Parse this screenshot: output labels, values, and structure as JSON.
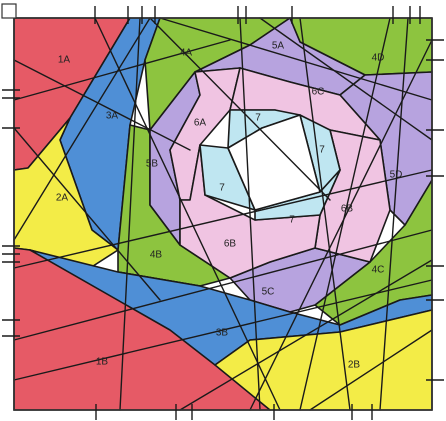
{
  "colors": {
    "red": "#e65a66",
    "blue": "#4f8fd6",
    "green": "#8dc43f",
    "yellow": "#f3ec47",
    "lavender": "#b7a3df",
    "pink": "#f0c4e2",
    "lightblue": "#bfe6f1",
    "white": "#ffffff"
  },
  "regions": [
    {
      "id": "1A",
      "label": "1A",
      "color": "red"
    },
    {
      "id": "2A",
      "label": "2A",
      "color": "yellow"
    },
    {
      "id": "3A",
      "label": "3A",
      "color": "blue"
    },
    {
      "id": "4A",
      "label": "4A",
      "color": "green"
    },
    {
      "id": "4B",
      "label": "4B",
      "color": "green"
    },
    {
      "id": "4C",
      "label": "4C",
      "color": "green"
    },
    {
      "id": "4D",
      "label": "4D",
      "color": "green"
    },
    {
      "id": "5A",
      "label": "5A",
      "color": "lavender"
    },
    {
      "id": "5B",
      "label": "5B",
      "color": "lavender"
    },
    {
      "id": "5C",
      "label": "5C",
      "color": "lavender"
    },
    {
      "id": "5D",
      "label": "5D",
      "color": "lavender"
    },
    {
      "id": "6A",
      "label": "6A",
      "color": "pink"
    },
    {
      "id": "6B",
      "label": "6B",
      "color": "pink"
    },
    {
      "id": "6B-2",
      "label": "6B",
      "color": "pink"
    },
    {
      "id": "6C",
      "label": "6C",
      "color": "pink"
    },
    {
      "id": "7-1",
      "label": "7",
      "color": "lightblue"
    },
    {
      "id": "7-2",
      "label": "7",
      "color": "lightblue"
    },
    {
      "id": "7-3",
      "label": "7",
      "color": "lightblue"
    },
    {
      "id": "7-4",
      "label": "7",
      "color": "lightblue"
    },
    {
      "id": "1B",
      "label": "1B",
      "color": "red"
    },
    {
      "id": "2B",
      "label": "2B",
      "color": "yellow"
    },
    {
      "id": "3B",
      "label": "3B",
      "color": "blue"
    }
  ]
}
